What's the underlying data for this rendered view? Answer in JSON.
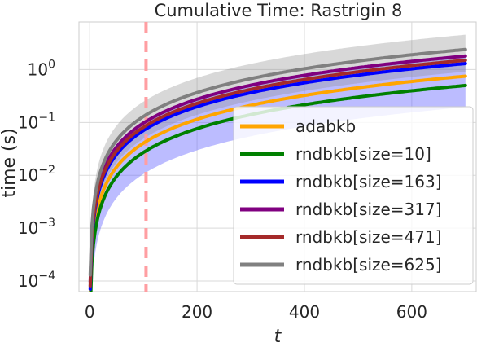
{
  "chart_data": {
    "type": "line",
    "title": "Cumulative Time: Rastrigin 8",
    "xlabel": "t",
    "ylabel": "time (s)",
    "xlim": [
      -20,
      720
    ],
    "ylim_log10": [
      -4.2,
      0.9
    ],
    "y_scale": "log",
    "grid": true,
    "legend_position": "lower right",
    "x_ticks": [
      0,
      200,
      400,
      600
    ],
    "y_ticks": [
      {
        "exp": -4,
        "label": "10"
      },
      {
        "exp": -3,
        "label": "10"
      },
      {
        "exp": -2,
        "label": "10"
      },
      {
        "exp": -1,
        "label": "10"
      },
      {
        "exp": 0,
        "label": "10"
      }
    ],
    "vline": {
      "x": 105,
      "color": "#ff9ea2"
    },
    "t_max": 700,
    "series": [
      {
        "name": "adabkb",
        "color": "#ffa500",
        "final": 0.75
      },
      {
        "name": "rndbkb[size=10]",
        "color": "#008000",
        "final": 0.5
      },
      {
        "name": "rndbkb[size=163]",
        "color": "#0000ff",
        "final": 1.3,
        "band": {
          "color": "#6b6bff",
          "opacity": 0.45,
          "lower_factor": 0.15,
          "upper_factor": 1.3
        }
      },
      {
        "name": "rndbkb[size=317]",
        "color": "#800080",
        "final": 1.8
      },
      {
        "name": "rndbkb[size=471]",
        "color": "#a52a2a",
        "final": 1.5
      },
      {
        "name": "rndbkb[size=625]",
        "color": "#808080",
        "final": 2.4,
        "band": {
          "color": "#909090",
          "opacity": 0.35,
          "lower_factor": 0.38,
          "upper_factor": 1.9
        }
      }
    ]
  }
}
